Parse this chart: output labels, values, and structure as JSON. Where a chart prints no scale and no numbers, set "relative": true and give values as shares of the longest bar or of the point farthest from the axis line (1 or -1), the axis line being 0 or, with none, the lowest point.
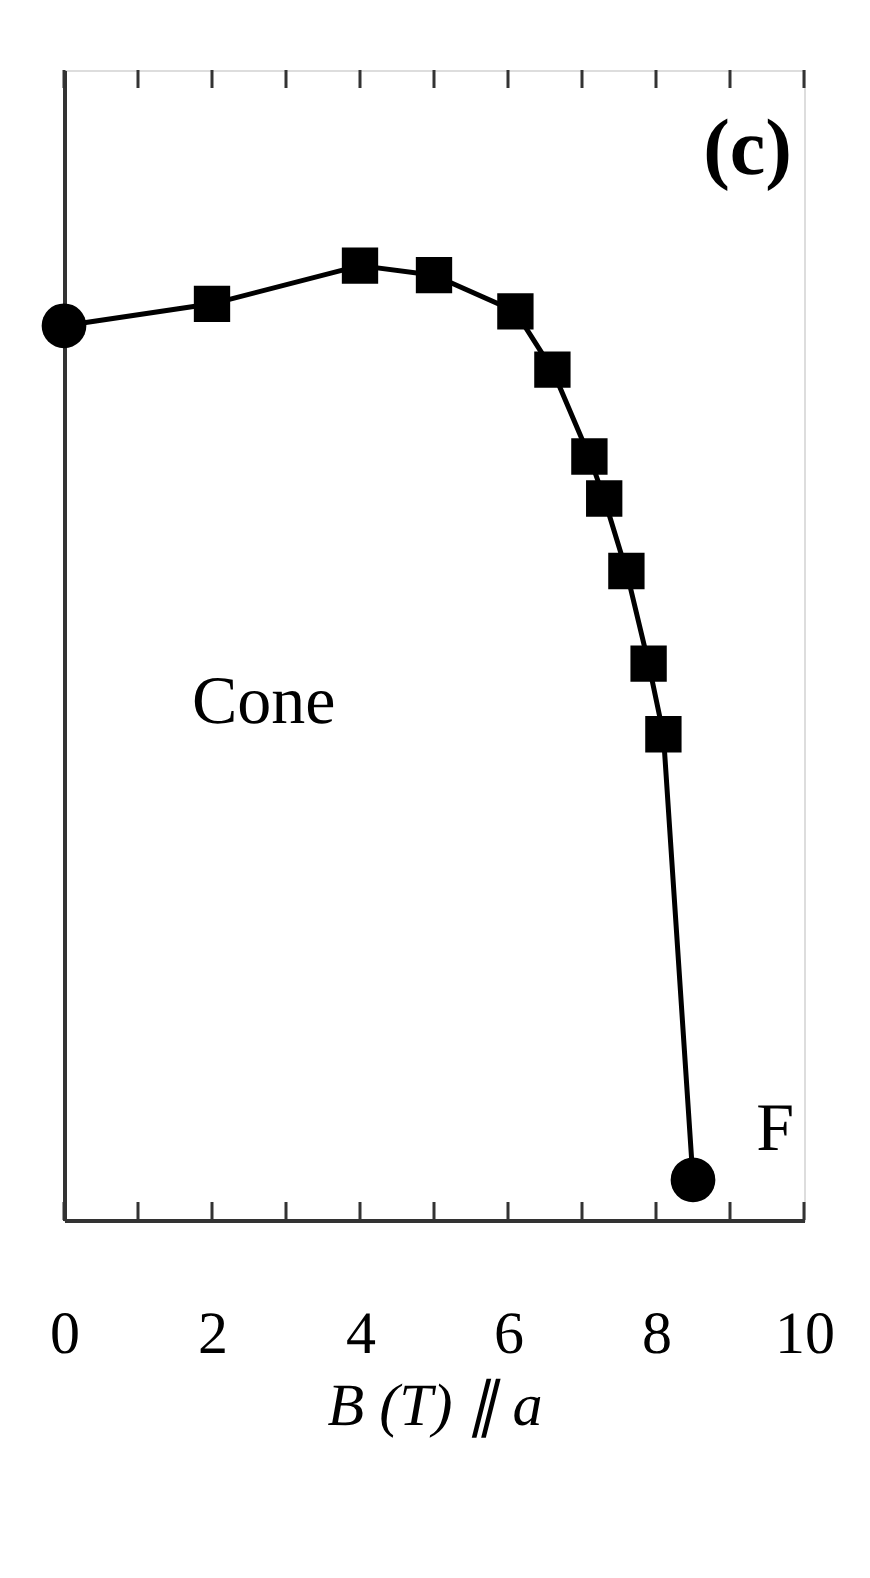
{
  "chart_data": {
    "type": "line",
    "relative": true,
    "xlabel": "B (T) ∥ a",
    "xlim": [
      0,
      10
    ],
    "xticks": [
      0,
      {
        "value": 1,
        "label": null
      },
      2,
      {
        "value": 3,
        "label": null
      },
      4,
      {
        "value": 5,
        "label": null
      },
      6,
      {
        "value": 7,
        "label": null
      },
      8,
      {
        "value": 9,
        "label": null
      },
      10
    ],
    "tick_labels": "x",
    "grid": false,
    "annotations": [
      "(c)",
      "Cone",
      "F"
    ],
    "series": [
      {
        "color": "#000000",
        "marker": "none",
        "x": [
          0,
          2,
          4,
          5,
          6.1,
          6.6,
          7.1,
          7.3,
          7.6,
          7.9,
          8.1,
          8.5
        ],
        "values": [
          0.937,
          0.96,
          1,
          0.99,
          0.952,
          0.891,
          0.8,
          0.756,
          0.68,
          0.583,
          0.509,
          0.042
        ]
      },
      {
        "type": "scatter",
        "color": "#000000",
        "marker": "square",
        "x": [
          2,
          4,
          5,
          6.1,
          6.6,
          7.1,
          7.3,
          7.6,
          7.9,
          8.1
        ],
        "values": [
          0.96,
          1,
          0.99,
          0.952,
          0.891,
          0.8,
          0.756,
          0.68,
          0.583,
          0.509
        ]
      },
      {
        "type": "scatter",
        "color": "#000000",
        "marker": "circle",
        "x": [
          0,
          8.5
        ],
        "values": [
          0.937,
          0.042
        ]
      }
    ]
  }
}
